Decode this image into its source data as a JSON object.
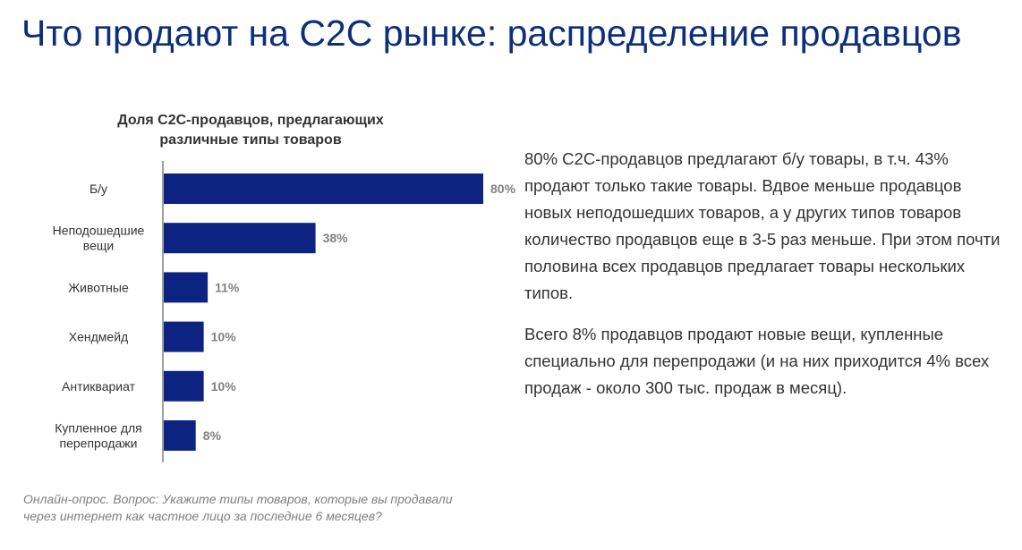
{
  "page": {
    "title": "Что продают на C2C рынке: распределение продавцов",
    "paragraphs": [
      "80% С2С-продавцов предлагают б/у товары, в т.ч. 43% продают только такие товары. Вдвое меньше продавцов новых неподошедших товаров, а у других типов товаров количество продавцов еще в 3-5 раз меньше. При этом почти половина всех продавцов предлагает товары нескольких типов.",
      "Всего 8% продавцов продают новые вещи, купленные специально для перепродажи (и на них приходится 4% всех продаж - около 300 тыс. продаж в месяц)."
    ],
    "footnote": "Онлайн-опрос. Вопрос: Укажите типы товаров, которые вы продавали через интернет как частное лицо за последние 6 месяцев?"
  },
  "colors": {
    "title": "#0d2f7a",
    "bar": "#0d2382",
    "value_label": "#808080"
  },
  "chart_data": {
    "type": "bar",
    "orientation": "horizontal",
    "title": "Доля С2С-продавцов, предлагающих различные типы товаров",
    "categories": [
      [
        "Б/у"
      ],
      [
        "Неподошедшие",
        "вещи"
      ],
      [
        "Животные"
      ],
      [
        "Хендмейд"
      ],
      [
        "Антиквариат"
      ],
      [
        "Купленное для",
        "перепродажи"
      ]
    ],
    "values": [
      80,
      38,
      11,
      10,
      10,
      8
    ],
    "value_labels": [
      "80%",
      "38%",
      "11%",
      "10%",
      "10%",
      "8%"
    ],
    "xlim": [
      0,
      80
    ],
    "grid": false,
    "legend": "none"
  }
}
